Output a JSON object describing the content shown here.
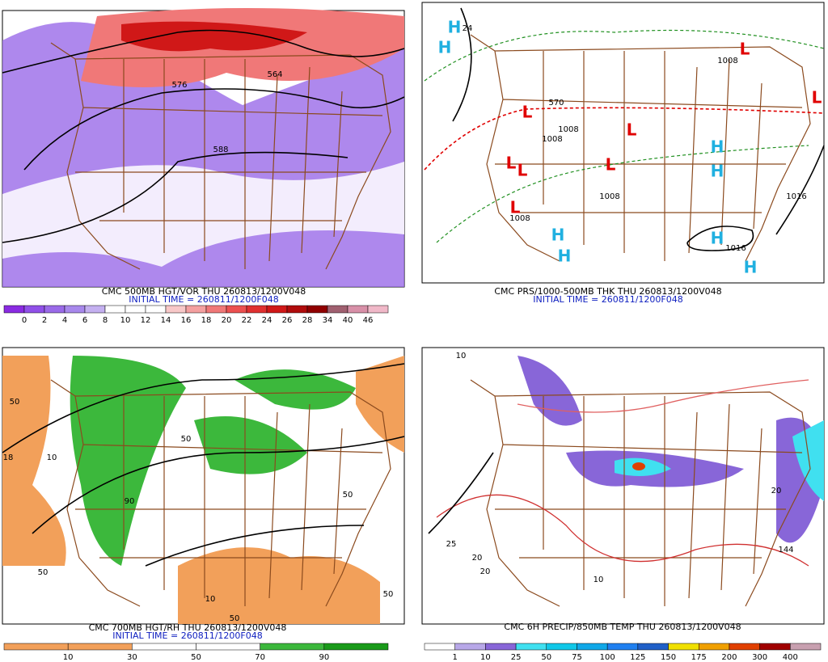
{
  "panels": [
    {
      "title": "CMC 500MB HGT/VOR THU 260813/1200V048",
      "initial_time": "INITIAL TIME = 260811/1200F048",
      "colorbar": {
        "labels": [
          0,
          2,
          4,
          6,
          8,
          10,
          12,
          14,
          16,
          18,
          20,
          22,
          24,
          26,
          28,
          34,
          40,
          46
        ],
        "colors": [
          "#8a2be2",
          "#9050e8",
          "#9a6ae8",
          "#a888ec",
          "#c4b0f0",
          "#ffffff",
          "#ffffff",
          "#ffffff",
          "#f8c8c8",
          "#f4a0a0",
          "#f07878",
          "#ec5050",
          "#e03030",
          "#d01818",
          "#b00c0c",
          "#900000",
          "#a06070",
          "#d890a8",
          "#f0b8c8"
        ]
      },
      "map_labels": [
        "564",
        "576",
        "588"
      ]
    },
    {
      "title": "CMC PRS/1000-500MB THK THU 260813/1200V048",
      "initial_time": "INITIAL TIME = 260811/1200F048",
      "map_labels": [
        "H",
        "H",
        "24",
        "L",
        "1008",
        "L",
        "1008",
        "1008",
        "L",
        "L",
        "L",
        "L",
        "1008",
        "L",
        "1008",
        "H",
        "H",
        "H",
        "H",
        "H",
        "1016",
        "H",
        "1016",
        "570",
        "L"
      ]
    },
    {
      "title": "CMC 700MB HGT/RH THU 260813/1200V048",
      "initial_time": "INITIAL TIME = 260811/1200F048",
      "colorbar": {
        "labels": [
          10,
          30,
          50,
          70,
          90
        ],
        "colors": [
          "#f2a05a",
          "#f2a05a",
          "#ffffff",
          "#ffffff",
          "#3cb83c",
          "#1a9a1a"
        ]
      },
      "map_labels": [
        "50",
        "18",
        "10",
        "50",
        "10",
        "50",
        "50",
        "90",
        "50",
        "50"
      ]
    },
    {
      "title": "CMC 6H PRECIP/850MB TEMP THU 260813/1200V048",
      "colorbar": {
        "labels": [
          1,
          10,
          25,
          50,
          75,
          100,
          125,
          150,
          175,
          200,
          300,
          400
        ],
        "colors": [
          "#ffffff",
          "#b8a8e8",
          "#8866d8",
          "#40e0f0",
          "#10c8e8",
          "#10a8e8",
          "#2080f0",
          "#2060c8",
          "#f0e000",
          "#f0a000",
          "#e04000",
          "#a00000",
          "#c8a0b0"
        ]
      },
      "map_labels": [
        "10",
        "144",
        "20",
        "25",
        "20",
        "10",
        "20"
      ]
    }
  ]
}
